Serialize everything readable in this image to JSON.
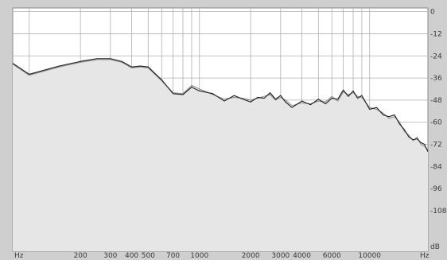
{
  "chart_data": {
    "type": "area",
    "x_scale": "log",
    "x_unit_label": "Hz",
    "x_unit_label_right": "Hz",
    "y_unit_label": "dB",
    "x_ticks": [
      {
        "value": 100,
        "label": ""
      },
      {
        "value": 200,
        "label": "200"
      },
      {
        "value": 300,
        "label": "300"
      },
      {
        "value": 400,
        "label": "400"
      },
      {
        "value": 500,
        "label": "500"
      },
      {
        "value": 700,
        "label": "700"
      },
      {
        "value": 1000,
        "label": "1000"
      },
      {
        "value": 2000,
        "label": "2000"
      },
      {
        "value": 3000,
        "label": "3000"
      },
      {
        "value": 4000,
        "label": "4000"
      },
      {
        "value": 6000,
        "label": "6000"
      },
      {
        "value": 10000,
        "label": "10000"
      }
    ],
    "x_gridlines": [
      100,
      200,
      300,
      400,
      500,
      600,
      700,
      800,
      900,
      1000,
      2000,
      3000,
      4000,
      5000,
      6000,
      7000,
      8000,
      9000,
      10000
    ],
    "xlim": [
      80,
      22000
    ],
    "y_ticks": [
      {
        "value": 0,
        "label": "0"
      },
      {
        "value": -12,
        "label": "-12"
      },
      {
        "value": -24,
        "label": "-24"
      },
      {
        "value": -36,
        "label": "-36"
      },
      {
        "value": -48,
        "label": "-48"
      },
      {
        "value": -60,
        "label": "-60"
      },
      {
        "value": -72,
        "label": "-72"
      },
      {
        "value": -84,
        "label": "-84"
      },
      {
        "value": -96,
        "label": "-96"
      },
      {
        "value": -108,
        "label": "-108"
      }
    ],
    "ylim": [
      -130,
      2
    ],
    "grid": true,
    "fill_color": "#e6e6e6",
    "background_color": "#ffffff",
    "gridline_color": "#b0b0b0",
    "series": [
      {
        "color": "#1e1e1e",
        "x": [
          80,
          100,
          150,
          200,
          250,
          300,
          350,
          400,
          450,
          500,
          600,
          700,
          800,
          900,
          1000,
          1200,
          1400,
          1600,
          1800,
          2000,
          2200,
          2400,
          2600,
          2800,
          3000,
          3200,
          3500,
          4000,
          4500,
          5000,
          5500,
          6000,
          6500,
          7000,
          7500,
          8000,
          8500,
          9000,
          10000,
          11000,
          12000,
          13000,
          14000,
          15000,
          16000,
          17000,
          18000,
          19000,
          20000,
          21000,
          22000
        ],
        "y": [
          -28,
          -34,
          -29.5,
          -27,
          -25.5,
          -25.5,
          -27,
          -30,
          -29.5,
          -30,
          -37,
          -44.5,
          -45,
          -41,
          -43,
          -44.5,
          -48.5,
          -45.5,
          -47.5,
          -49,
          -46.5,
          -47,
          -44,
          -47.5,
          -45.5,
          -49,
          -52,
          -48.5,
          -50.5,
          -47.5,
          -50,
          -47,
          -47.5,
          -42.5,
          -46,
          -43,
          -47,
          -45.5,
          -53,
          -52,
          -56,
          -57,
          -56,
          -61,
          -64,
          -68,
          -69.5,
          -69,
          -71,
          -72,
          -76
        ]
      },
      {
        "color": "#8c8c8c",
        "x": [
          80,
          100,
          150,
          200,
          250,
          300,
          350,
          400,
          450,
          500,
          600,
          700,
          800,
          900,
          1000,
          1200,
          1400,
          1600,
          1800,
          2000,
          2200,
          2400,
          2600,
          2800,
          3000,
          3200,
          3500,
          4000,
          4500,
          5000,
          5500,
          6000,
          6500,
          7000,
          7500,
          8000,
          8500,
          9000,
          10000,
          11000,
          12000,
          13000,
          14000,
          15000,
          16000,
          17000,
          18000,
          19000,
          20000,
          21000,
          22000
        ],
        "y": [
          -28.5,
          -34.5,
          -30,
          -27.5,
          -26,
          -26,
          -27.5,
          -30.5,
          -30,
          -30.5,
          -37.5,
          -44,
          -44.5,
          -40,
          -42,
          -45,
          -47.5,
          -46.5,
          -47,
          -48,
          -47,
          -46,
          -45,
          -48,
          -46.5,
          -48,
          -51,
          -49.5,
          -50,
          -48.5,
          -49,
          -46,
          -48.5,
          -43.5,
          -45,
          -44,
          -46,
          -46.5,
          -52,
          -53,
          -55,
          -58,
          -57,
          -60,
          -65,
          -67,
          -70,
          -68,
          -72,
          -73,
          -75
        ]
      }
    ]
  }
}
